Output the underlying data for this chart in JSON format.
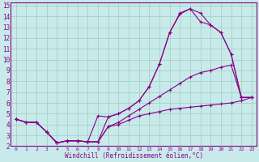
{
  "xlabel": "Windchill (Refroidissement éolien,°C)",
  "background_color": "#c8eaea",
  "grid_color": "#a0ccbb",
  "line_color": "#880088",
  "xlim": [
    -0.5,
    23.5
  ],
  "ylim": [
    2,
    15.3
  ],
  "xticks": [
    0,
    1,
    2,
    3,
    4,
    5,
    6,
    7,
    8,
    9,
    10,
    11,
    12,
    13,
    14,
    15,
    16,
    17,
    18,
    19,
    20,
    21,
    22,
    23
  ],
  "yticks": [
    2,
    3,
    4,
    5,
    6,
    7,
    8,
    9,
    10,
    11,
    12,
    13,
    14,
    15
  ],
  "lines": [
    {
      "x": [
        0,
        1,
        2,
        3,
        4,
        5,
        6,
        7,
        8,
        9,
        10,
        11,
        12,
        13,
        14,
        15,
        16,
        17,
        18,
        19,
        20,
        21,
        22,
        23
      ],
      "y": [
        4.5,
        4.2,
        4.2,
        3.3,
        2.3,
        2.5,
        2.5,
        2.4,
        2.4,
        3.8,
        4.0,
        4.4,
        4.8,
        5.0,
        5.2,
        5.4,
        5.5,
        5.6,
        5.7,
        5.8,
        5.9,
        6.0,
        6.2,
        6.5
      ]
    },
    {
      "x": [
        0,
        1,
        2,
        3,
        4,
        5,
        6,
        7,
        8,
        9,
        10,
        11,
        12,
        13,
        14,
        15,
        16,
        17,
        18,
        19,
        20,
        21,
        22,
        23
      ],
      "y": [
        4.5,
        4.2,
        4.2,
        3.3,
        2.3,
        2.5,
        2.5,
        2.4,
        2.4,
        3.8,
        4.2,
        4.8,
        5.4,
        6.0,
        6.6,
        7.2,
        7.8,
        8.4,
        8.8,
        9.0,
        9.3,
        9.5,
        6.5,
        6.5
      ]
    },
    {
      "x": [
        0,
        1,
        2,
        3,
        4,
        5,
        6,
        7,
        8,
        9,
        10,
        11,
        12,
        13,
        14,
        15,
        16,
        17,
        18,
        19,
        20,
        21,
        22,
        23
      ],
      "y": [
        4.5,
        4.2,
        4.2,
        3.3,
        2.3,
        2.5,
        2.5,
        2.4,
        2.4,
        4.7,
        5.0,
        5.5,
        6.2,
        7.5,
        9.6,
        12.5,
        14.3,
        14.7,
        14.3,
        13.2,
        12.5,
        10.5,
        6.5,
        6.5
      ]
    },
    {
      "x": [
        0,
        1,
        2,
        3,
        4,
        5,
        6,
        7,
        8,
        9,
        10,
        11,
        12,
        13,
        14,
        15,
        16,
        17,
        18,
        19,
        20,
        21,
        22,
        23
      ],
      "y": [
        4.5,
        4.2,
        4.2,
        3.3,
        2.3,
        2.5,
        2.5,
        2.4,
        4.8,
        4.7,
        5.0,
        5.5,
        6.2,
        7.5,
        9.6,
        12.5,
        14.2,
        14.7,
        13.5,
        13.2,
        12.5,
        10.5,
        6.5,
        6.5
      ]
    }
  ]
}
